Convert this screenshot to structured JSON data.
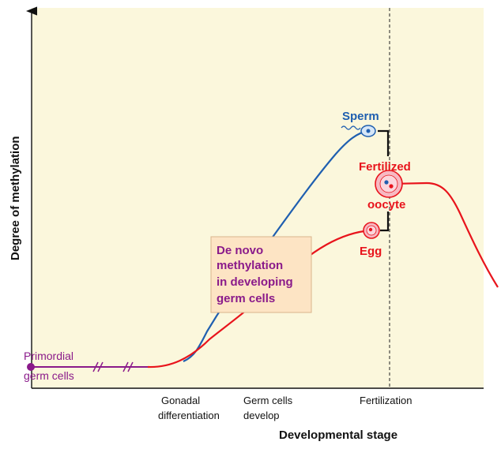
{
  "axes": {
    "y_label": "Degree of methylation",
    "x_label": "Developmental stage"
  },
  "x_ticks": {
    "gonadal_line1": "Gonadal",
    "gonadal_line2": "differentiation",
    "germ_line1": "Germ cells",
    "germ_line2": "develop",
    "fertilization": "Fertilization"
  },
  "labels": {
    "sperm": "Sperm",
    "egg": "Egg",
    "fertilized_line1": "Fertilized",
    "fertilized_line2": "oocyte",
    "primordial_line1": "Primordial",
    "primordial_line2": "germ cells"
  },
  "callout": {
    "line1": "De novo",
    "line2": "methylation",
    "line3": "in developing",
    "line4": "germ cells"
  },
  "colors": {
    "background": "#fbf7dc",
    "sperm_curve": "#1f5fb0",
    "egg_curve": "#e8141c",
    "primordial": "#8a1a8a",
    "callout_text": "#8a1a8a",
    "callout_fill": "#fde4c4",
    "callout_border": "#d9b48c"
  }
}
